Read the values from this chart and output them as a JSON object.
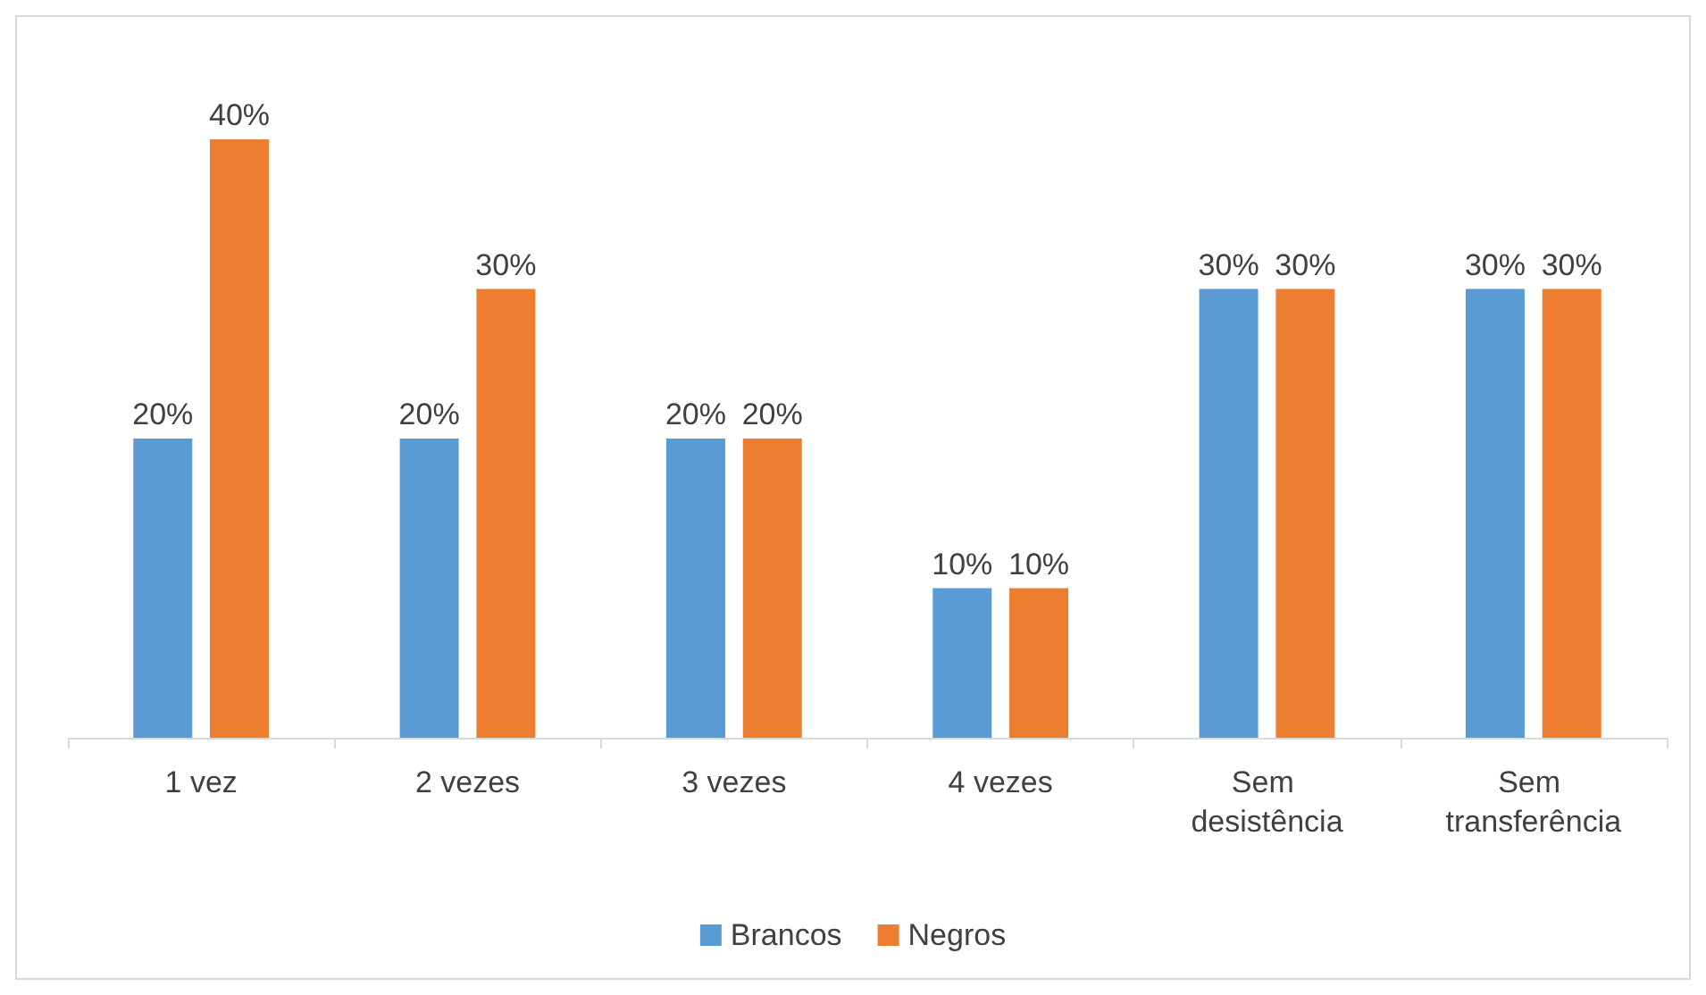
{
  "chart_data": {
    "type": "bar",
    "categories": [
      "1 vez",
      "2 vezes",
      "3 vezes",
      "4 vezes",
      "Sem desistência",
      "Sem transferência"
    ],
    "series": [
      {
        "name": "Brancos",
        "color": "#5b9bd5",
        "values": [
          20,
          20,
          20,
          10,
          30,
          30
        ],
        "value_labels": [
          "20%",
          "20%",
          "20%",
          "10%",
          "30%",
          "30%"
        ]
      },
      {
        "name": "Negros",
        "color": "#ed7d31",
        "values": [
          40,
          30,
          20,
          10,
          30,
          30
        ],
        "value_labels": [
          "40%",
          "30%",
          "20%",
          "10%",
          "30%",
          "30%"
        ]
      }
    ],
    "legend": "bottom",
    "grid": false
  }
}
